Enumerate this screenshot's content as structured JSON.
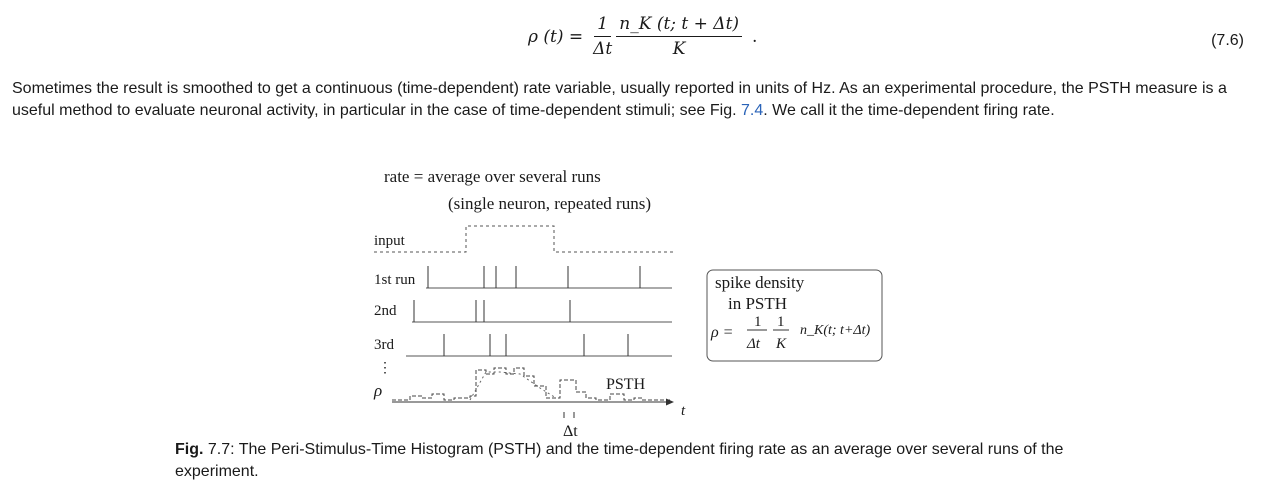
{
  "equation": {
    "lhs": "ρ (t) =",
    "frac1_num": "1",
    "frac1_den": "Δt",
    "frac2_num": "n_K (t; t + Δt)",
    "frac2_den": "K",
    "dot": ".",
    "number": "(7.6)"
  },
  "paragraph": {
    "text_before_link": "Sometimes the result is smoothed to get a continuous (time-dependent) rate variable, usually reported in units of Hz. As an experimental procedure, the PSTH measure is a useful method to evaluate neuronal activity, in particular in the case of time-dependent stimuli; see Fig. ",
    "link": "7.4",
    "text_after_link": ". We call it the time-dependent firing rate."
  },
  "figure": {
    "title_line1": "rate =  average over several runs",
    "title_line2": "(single neuron, repeated runs)",
    "row_labels": [
      "input",
      "1st run",
      "2nd",
      "3rd",
      "⋮",
      "ρ"
    ],
    "psth_label": "PSTH",
    "time_label": "t",
    "dt_label": "Δt",
    "box_line1": "spike density",
    "box_line2": "in PSTH",
    "box_rho": "ρ =",
    "box_frac1_num": "1",
    "box_frac1_den": "Δt",
    "box_frac2_num": "1",
    "box_frac2_den": "K",
    "box_tail": "n_K(t; t+Δt)"
  },
  "caption": {
    "label": "Fig.",
    "number": " 7.7",
    "text": ": The Peri-Stimulus-Time Histogram (PSTH) and the time-dependent firing rate as an average over several runs of the experiment."
  }
}
